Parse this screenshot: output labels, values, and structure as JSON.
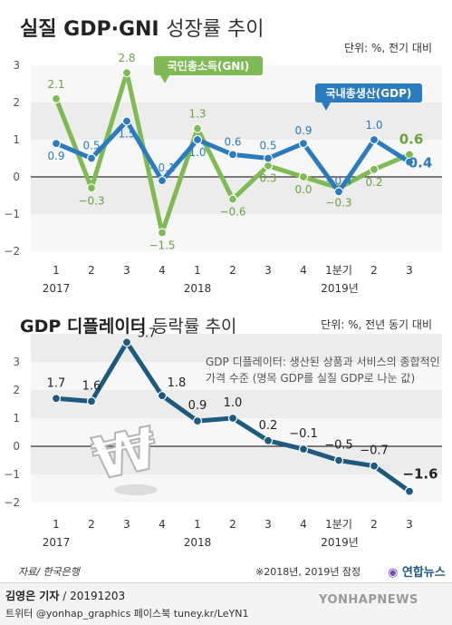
{
  "header": {
    "title_main": "실질 GDP·GNI",
    "title_sub": "성장률 추이"
  },
  "chart_data": [
    {
      "type": "line",
      "unit_label": "단위: %, 전기 대비",
      "categories": [
        "1",
        "2",
        "3",
        "4",
        "1",
        "2",
        "3",
        "4",
        "1분기",
        "2",
        "3"
      ],
      "year_labels": [
        "2017",
        "2018",
        "2019년"
      ],
      "y_ticks": [
        "3",
        "2",
        "1",
        "0",
        "−1",
        "−2"
      ],
      "ylim": [
        -2,
        3
      ],
      "series": [
        {
          "name": "국민총소득(GNI)",
          "values": [
            2.1,
            -0.3,
            2.8,
            -1.5,
            1.3,
            -0.6,
            0.3,
            0.0,
            -0.3,
            0.2,
            0.6
          ],
          "labels": [
            "2.1",
            "−0.3",
            "2.8",
            "−1.5",
            "1.3",
            "−0.6",
            "0.3",
            "0.0",
            "−0.3",
            "0.2",
            "0.6"
          ],
          "color": "#7fba55"
        },
        {
          "name": "국내총생산(GDP)",
          "values": [
            0.9,
            0.5,
            1.5,
            -0.1,
            1.0,
            0.6,
            0.5,
            0.9,
            -0.4,
            1.0,
            0.4
          ],
          "labels": [
            "0.9",
            "0.5",
            "1.5",
            "−0.1",
            "1.0",
            "0.6",
            "0.5",
            "0.9",
            "−0.4",
            "1.0",
            "0.4"
          ],
          "color": "#2a7bbf"
        }
      ]
    },
    {
      "type": "line",
      "title_main": "GDP 디플레이터",
      "title_sub": "등락률 추이",
      "unit_label": "단위: %, 전년 동기 대비",
      "note": "GDP 디플레이터: 생산된 상품과 서비스의 종합적인 가격 수준 (명목 GDP를 실질 GDP로 나눈 값)",
      "categories": [
        "1",
        "2",
        "3",
        "4",
        "1",
        "2",
        "3",
        "4",
        "1분기",
        "2",
        "3"
      ],
      "year_labels": [
        "2017",
        "2018",
        "2019년"
      ],
      "y_ticks": [
        "3",
        "2",
        "1",
        "0",
        "−1",
        "−2"
      ],
      "ylim": [
        -2,
        4
      ],
      "series": [
        {
          "name": "GDP 디플레이터",
          "values": [
            1.7,
            1.6,
            3.7,
            1.8,
            0.9,
            1.0,
            0.2,
            -0.1,
            -0.5,
            -0.7,
            -1.6
          ],
          "labels": [
            "1.7",
            "1.6",
            "3.7",
            "1.8",
            "0.9",
            "1.0",
            "0.2",
            "−0.1",
            "−0.5",
            "−0.7",
            "−1.6"
          ],
          "color": "#1e5a7d"
        }
      ]
    }
  ],
  "won_symbol": "₩",
  "footer": {
    "source": "자료/ 한국은행",
    "provisional": "※2018년, 2019년 잠정",
    "credit_name": "김영은 기자",
    "credit_date": " / 20191203",
    "social": "트위터 @yonhap_graphics  페이스북 tuney.kr/LeYN1",
    "logo": "연합뉴스",
    "watermark": "YONHAPNEWS"
  }
}
